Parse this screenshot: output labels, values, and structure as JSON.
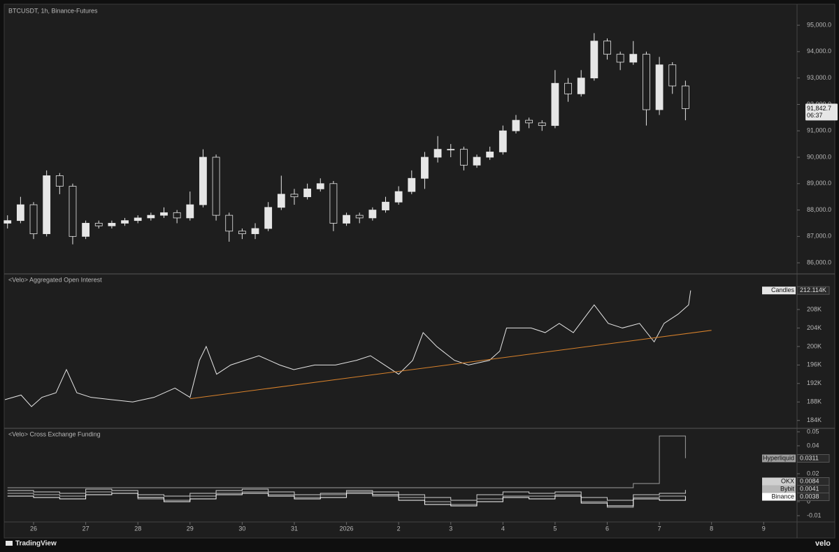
{
  "chart_data": [
    {
      "type": "candlestick",
      "title": "BTCUSDT, 1h, Binance-Futures",
      "x": [
        -0.5,
        -0.25,
        0,
        0.25,
        0.5,
        0.75,
        1,
        1.25,
        1.5,
        1.75,
        2,
        2.25,
        2.5,
        2.75,
        3,
        3.25,
        3.5,
        3.75,
        4,
        4.25,
        4.5,
        4.75,
        5,
        5.25,
        5.5,
        5.75,
        6,
        6.25,
        6.5,
        6.75,
        7,
        7.25,
        7.5,
        7.75,
        8,
        8.25,
        8.5,
        8.75,
        9,
        9.25,
        9.5,
        9.75,
        10,
        10.25,
        10.5,
        10.75,
        11,
        11.25,
        11.5,
        11.75,
        12,
        12.25,
        12.5
      ],
      "open": [
        87500,
        87600,
        88200,
        87100,
        89300,
        88900,
        87000,
        87500,
        87400,
        87500,
        87600,
        87700,
        87800,
        87900,
        87700,
        88200,
        90000,
        87800,
        87200,
        87100,
        87300,
        88100,
        88600,
        88500,
        88800,
        89000,
        87500,
        87800,
        87700,
        88000,
        88300,
        88700,
        89200,
        90000,
        90300,
        90300,
        89700,
        90000,
        90200,
        91000,
        91400,
        91300,
        91200,
        92800,
        92400,
        93000,
        94400,
        93900,
        93600,
        93900,
        91800,
        93500,
        92700
      ],
      "high": [
        87800,
        88500,
        88300,
        89500,
        89400,
        89000,
        87600,
        87600,
        87600,
        87700,
        87800,
        87900,
        88100,
        88000,
        88700,
        90300,
        90100,
        87900,
        87300,
        87500,
        88300,
        89300,
        88800,
        89000,
        89200,
        89100,
        87900,
        87900,
        88100,
        88500,
        88900,
        89500,
        90200,
        90800,
        90500,
        90400,
        90100,
        90400,
        91200,
        91600,
        91500,
        91400,
        93300,
        93000,
        93300,
        94700,
        94500,
        94000,
        94400,
        94000,
        93800,
        93600,
        92900
      ],
      "low": [
        87300,
        87500,
        86900,
        87000,
        88600,
        86700,
        86900,
        87300,
        87300,
        87400,
        87500,
        87600,
        87700,
        87500,
        87600,
        88100,
        87600,
        86800,
        86900,
        86900,
        87200,
        88000,
        88200,
        88400,
        88700,
        87200,
        87400,
        87500,
        87600,
        87900,
        88200,
        88600,
        88800,
        89800,
        90000,
        89500,
        89600,
        89900,
        90100,
        90900,
        91100,
        91000,
        91100,
        92100,
        92300,
        92900,
        93700,
        93300,
        93500,
        91200,
        91600,
        92400,
        91400
      ],
      "close": [
        87600,
        88200,
        87100,
        89300,
        88900,
        87000,
        87500,
        87400,
        87500,
        87600,
        87700,
        87800,
        87900,
        87700,
        88200,
        90000,
        87800,
        87200,
        87100,
        87300,
        88100,
        88600,
        88500,
        88800,
        89000,
        87500,
        87800,
        87700,
        88000,
        88300,
        88700,
        89200,
        90000,
        90300,
        90300,
        89700,
        90000,
        90200,
        91000,
        91400,
        91300,
        91200,
        92800,
        92400,
        93000,
        94400,
        93900,
        93600,
        93900,
        91800,
        93500,
        92700,
        91842.7
      ],
      "up_color": "#e6e6e6",
      "down_color": "#1e1e1e",
      "last_value_label": "91,842.7",
      "countdown": "06:37",
      "ylim": [
        85580,
        95770
      ],
      "yticks": [
        {
          "value": 86000,
          "label": "86,000.0"
        },
        {
          "value": 87000,
          "label": "87,000.0"
        },
        {
          "value": 88000,
          "label": "88,000.0"
        },
        {
          "value": 89000,
          "label": "89,000.0"
        },
        {
          "value": 90000,
          "label": "90,000.0"
        },
        {
          "value": 91000,
          "label": "91,000.0"
        },
        {
          "value": 92000,
          "label": "92,000.0"
        },
        {
          "value": 93000,
          "label": "93,000.0"
        },
        {
          "value": 94000,
          "label": "94,000.0"
        },
        {
          "value": 95000,
          "label": "95,000.0"
        }
      ],
      "grid": false
    },
    {
      "type": "line",
      "title": "<Velo> Aggregated Open Interest",
      "x": [
        -0.55,
        -0.24,
        -0.04,
        0.16,
        0.43,
        0.63,
        0.83,
        1.1,
        1.5,
        1.9,
        2.31,
        2.71,
        3.0,
        3.18,
        3.31,
        3.51,
        3.78,
        4.05,
        4.32,
        4.72,
        4.99,
        5.39,
        5.79,
        6.19,
        6.46,
        6.73,
        7.0,
        7.27,
        7.47,
        7.73,
        8.07,
        8.34,
        8.74,
        8.94,
        9.07,
        9.54,
        9.81,
        10.08,
        10.35,
        10.55,
        10.75,
        11.02,
        11.29,
        11.62,
        11.9,
        12.09,
        12.36,
        12.56,
        12.6
      ],
      "series": [
        {
          "name": "Candles",
          "color": "#e6e6e6",
          "last_value_label": "212.114K",
          "values": [
            188500,
            189500,
            187000,
            189000,
            190000,
            195000,
            190000,
            189000,
            188500,
            188000,
            189000,
            191000,
            189000,
            197000,
            200000,
            194000,
            196000,
            197000,
            198000,
            196000,
            195000,
            196000,
            196000,
            197000,
            198000,
            196000,
            194000,
            197000,
            203000,
            200000,
            197000,
            196000,
            197000,
            199000,
            204000,
            204000,
            203000,
            205000,
            203000,
            206000,
            209000,
            205000,
            204000,
            205000,
            201000,
            205000,
            207000,
            209000,
            212114
          ]
        }
      ],
      "trendline": {
        "x": [
          3.0,
          13.0
        ],
        "values": [
          188700,
          203500
        ],
        "color": "#d9822b"
      },
      "ylim": [
        182300,
        215700
      ],
      "yticks": [
        {
          "value": 184000,
          "label": "184K"
        },
        {
          "value": 188000,
          "label": "188K"
        },
        {
          "value": 192000,
          "label": "192K"
        },
        {
          "value": 196000,
          "label": "196K"
        },
        {
          "value": 200000,
          "label": "200K"
        },
        {
          "value": 204000,
          "label": "204K"
        },
        {
          "value": 208000,
          "label": "208K"
        }
      ],
      "grid": false
    },
    {
      "type": "line",
      "step": true,
      "title": "<Velo> Cross Exchange Funding",
      "x": [
        -0.5,
        0,
        0.5,
        1,
        1.5,
        2,
        2.5,
        3,
        3.5,
        4,
        4.5,
        5,
        5.5,
        6,
        6.5,
        7,
        7.5,
        8,
        8.5,
        9,
        9.5,
        10,
        10.5,
        11,
        11.5,
        12,
        12.5
      ],
      "series": [
        {
          "name": "Hyperliquid",
          "color": "#9e9e9e",
          "values": [
            0.01,
            0.01,
            0.01,
            0.01,
            0.01,
            0.01,
            0.01,
            0.01,
            0.01,
            0.01,
            0.01,
            0.01,
            0.01,
            0.01,
            0.01,
            0.01,
            0.01,
            0.01,
            0.01,
            0.01,
            0.01,
            0.01,
            0.01,
            0.01,
            0.013,
            0.047,
            0.0311
          ]
        },
        {
          "name": "OKX",
          "color": "#d0d0d0",
          "values": [
            0.008,
            0.007,
            0.006,
            0.009,
            0.008,
            0.005,
            0.004,
            0.006,
            0.008,
            0.009,
            0.007,
            0.005,
            0.006,
            0.008,
            0.007,
            0.005,
            0.003,
            0.001,
            0.005,
            0.007,
            0.006,
            0.007,
            0.003,
            0.001,
            0.005,
            0.006,
            0.0084
          ]
        },
        {
          "name": "Bybit",
          "color": "#b8b8b8",
          "values": [
            0.006,
            0.005,
            0.004,
            0.007,
            0.006,
            0.002,
            0.001,
            0.004,
            0.006,
            0.007,
            0.005,
            0.003,
            0.005,
            0.007,
            0.004,
            0.003,
            0,
            -0.002,
            0.002,
            0.004,
            0.004,
            0.005,
            0,
            -0.004,
            0.003,
            0.004,
            0.0041
          ]
        },
        {
          "name": "Binance",
          "color": "#ffffff",
          "values": [
            0.004,
            0.003,
            0.002,
            0.005,
            0.006,
            0.003,
            0,
            0.002,
            0.005,
            0.006,
            0.004,
            0.002,
            0.003,
            0.006,
            0.005,
            0.001,
            -0.002,
            -0.003,
            0,
            0.003,
            0.002,
            0.004,
            -0.001,
            -0.003,
            0.002,
            0.001,
            0.0038
          ]
        }
      ],
      "ylim": [
        -0.0145,
        0.0525
      ],
      "yticks": [
        -0.01,
        0,
        0.02,
        0.04,
        0.05
      ],
      "xlim": [
        -0.55,
        14.64
      ],
      "xticks": [
        {
          "value": 0,
          "label": "26"
        },
        {
          "value": 1,
          "label": "27"
        },
        {
          "value": 2,
          "label": "28"
        },
        {
          "value": 3,
          "label": "29"
        },
        {
          "value": 4,
          "label": "30"
        },
        {
          "value": 5,
          "label": "31"
        },
        {
          "value": 6,
          "label": "2026"
        },
        {
          "value": 7,
          "label": "2"
        },
        {
          "value": 8,
          "label": "3"
        },
        {
          "value": 9,
          "label": "4"
        },
        {
          "value": 10,
          "label": "5"
        },
        {
          "value": 11,
          "label": "6"
        },
        {
          "value": 12,
          "label": "7"
        },
        {
          "value": 13,
          "label": "8"
        },
        {
          "value": 14,
          "label": "9"
        }
      ],
      "grid": false
    }
  ],
  "footer": {
    "left": "TradingView",
    "right": "velo"
  }
}
